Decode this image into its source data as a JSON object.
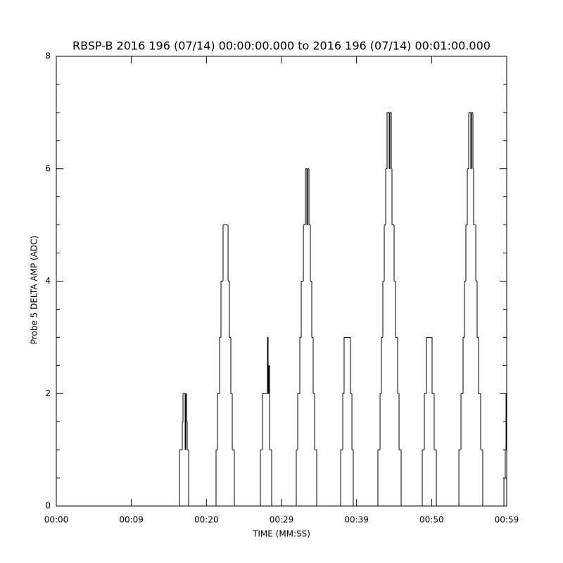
{
  "chart_data": {
    "type": "step",
    "title": "RBSP-B 2016 196 (07/14) 00:00:00.000 to 2016 196 (07/14) 00:01:00.000",
    "x_label": "TIME (MM:SS)",
    "y_label": "Probe 5 DELTA AMP (ADC)",
    "color": "#000000",
    "xlim": [
      0,
      60
    ],
    "xticks": [
      {
        "value": 0,
        "label": "00:00"
      },
      {
        "value": 10,
        "label": "00:09"
      },
      {
        "value": 20,
        "label": "00:20"
      },
      {
        "value": 30,
        "label": "00:29"
      },
      {
        "value": 40,
        "label": "00:39"
      },
      {
        "value": 50,
        "label": "00:50"
      },
      {
        "value": 60,
        "label": "00:59"
      }
    ],
    "ylim": [
      0,
      8
    ],
    "yticks": [
      0,
      2,
      4,
      6,
      8
    ],
    "yminor": 4,
    "x": [
      0,
      16.41,
      16.78,
      16.88,
      17.16,
      17.25,
      17.34,
      17.44,
      17.63,
      21.28,
      21.47,
      21.75,
      21.94,
      22.22,
      22.88,
      23.06,
      23.25,
      23.44,
      23.72,
      27.19,
      27.47,
      28.13,
      28.22,
      28.31,
      28.41,
      28.69,
      31.97,
      32.16,
      32.44,
      32.63,
      32.91,
      33.19,
      33.38,
      33.47,
      33.66,
      33.84,
      34.03,
      34.22,
      34.41,
      34.69,
      37.88,
      38.16,
      38.34,
      39.19,
      39.38,
      39.56,
      42.84,
      43.13,
      43.31,
      43.5,
      43.69,
      43.88,
      44.06,
      44.34,
      44.44,
      44.63,
      44.72,
      45.0,
      45.19,
      45.47,
      45.66,
      45.94,
      48.75,
      49.03,
      49.31,
      50.06,
      50.34,
      50.63,
      53.63,
      53.91,
      54.19,
      54.38,
      54.56,
      54.75,
      54.94,
      55.22,
      55.31,
      55.5,
      55.59,
      55.88,
      56.06,
      56.25,
      56.53,
      56.81,
      59.63,
      59.81,
      59.91
    ],
    "values": [
      0,
      1,
      1.5,
      2,
      1,
      2,
      1.5,
      1,
      0,
      1,
      2,
      3,
      4,
      5,
      4,
      3,
      2,
      1,
      0,
      1,
      2,
      3,
      2,
      2.5,
      1,
      0,
      1,
      2,
      3,
      4,
      5,
      6,
      5,
      6,
      5,
      4,
      3,
      2,
      1,
      0,
      1,
      2,
      3,
      2,
      1,
      0,
      1,
      2,
      3,
      4,
      5,
      6,
      7,
      6,
      7,
      6,
      5,
      4,
      3,
      2,
      1,
      0,
      1,
      2,
      3,
      2,
      1,
      0,
      1,
      2,
      3,
      4,
      5,
      6,
      7,
      6,
      7,
      6,
      5,
      4,
      3,
      2,
      1,
      0,
      0.5,
      1,
      2
    ]
  }
}
